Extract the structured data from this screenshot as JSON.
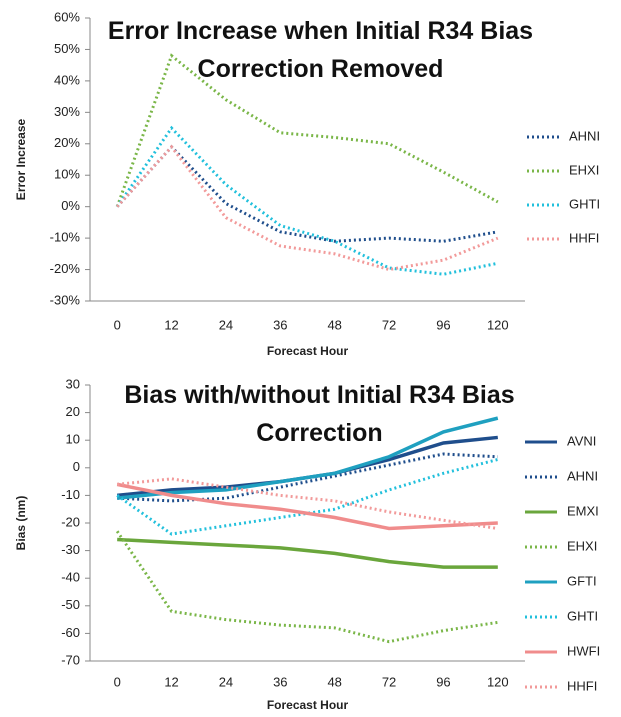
{
  "chart_data": [
    {
      "type": "line",
      "title": "Error Increase when Initial R34 Bias Correction Removed",
      "x_label": "Forecast Hour",
      "y_label": "Error Increase",
      "categories": [
        "0",
        "12",
        "24",
        "36",
        "48",
        "72",
        "96",
        "120"
      ],
      "ylim": [
        -30,
        60
      ],
      "yticks": [
        {
          "value": -30,
          "label": "-30%"
        },
        {
          "value": -20,
          "label": "-20%"
        },
        {
          "value": -10,
          "label": "-10%"
        },
        {
          "value": 0,
          "label": "0%"
        },
        {
          "value": 10,
          "label": "10%"
        },
        {
          "value": 20,
          "label": "20%"
        },
        {
          "value": 30,
          "label": "30%"
        },
        {
          "value": 40,
          "label": "40%"
        },
        {
          "value": 50,
          "label": "50%"
        },
        {
          "value": 60,
          "label": "60%"
        }
      ],
      "series": [
        {
          "name": "AHNI",
          "color": "#1f4e8c",
          "dash": true,
          "values": [
            0,
            19,
            1,
            -8,
            -11,
            -10,
            -11,
            -8
          ]
        },
        {
          "name": "EHXI",
          "color": "#7ab648",
          "dash": true,
          "values": [
            0,
            48,
            34,
            23.5,
            22,
            20,
            11,
            1.5
          ]
        },
        {
          "name": "GHTI",
          "color": "#22c0dc",
          "dash": true,
          "values": [
            0,
            25,
            7,
            -6,
            -11,
            -19.5,
            -21.5,
            -18
          ]
        },
        {
          "name": "HHFI",
          "color": "#f29a9a",
          "dash": true,
          "values": [
            0,
            19,
            -3.5,
            -12.5,
            -15,
            -20,
            -17,
            -10
          ]
        }
      ]
    },
    {
      "type": "line",
      "title": "Bias with/without Initial R34 Bias Correction",
      "x_label": "Forecast Hour",
      "y_label": "Bias (nm)",
      "categories": [
        "0",
        "12",
        "24",
        "36",
        "48",
        "72",
        "96",
        "120"
      ],
      "ylim": [
        -70,
        30
      ],
      "yticks": [
        -70,
        -60,
        -50,
        -40,
        -30,
        -20,
        -10,
        0,
        10,
        20,
        30
      ],
      "series": [
        {
          "name": "AVNI",
          "color": "#1f4e8c",
          "dash": false,
          "values": [
            -10,
            -8,
            -7,
            -5,
            -2,
            3,
            9,
            11
          ]
        },
        {
          "name": "AHNI",
          "color": "#1f4e8c",
          "dash": true,
          "values": [
            -11,
            -12,
            -11,
            -7,
            -3,
            1,
            5,
            4
          ]
        },
        {
          "name": "EMXI",
          "color": "#6aa63c",
          "dash": false,
          "values": [
            -26,
            -27,
            -28,
            -29,
            -31,
            -34,
            -36,
            -36
          ]
        },
        {
          "name": "EHXI",
          "color": "#7ab648",
          "dash": true,
          "values": [
            -23,
            -52,
            -55,
            -57,
            -58,
            -63,
            -59,
            -56
          ]
        },
        {
          "name": "GFTI",
          "color": "#1fa0c0",
          "dash": false,
          "values": [
            -11,
            -9,
            -8,
            -5,
            -2,
            4,
            13,
            18
          ]
        },
        {
          "name": "GHTI",
          "color": "#22c0dc",
          "dash": true,
          "values": [
            -10,
            -24,
            -21,
            -18,
            -15,
            -8,
            -2,
            3
          ]
        },
        {
          "name": "HWFI",
          "color": "#f08c8c",
          "dash": false,
          "values": [
            -6,
            -10,
            -13,
            -15,
            -18,
            -22,
            -21,
            -20
          ]
        },
        {
          "name": "HHFI",
          "color": "#f29a9a",
          "dash": true,
          "values": [
            -6,
            -4,
            -7,
            -10,
            -12,
            -16,
            -19,
            -22
          ]
        }
      ]
    }
  ]
}
